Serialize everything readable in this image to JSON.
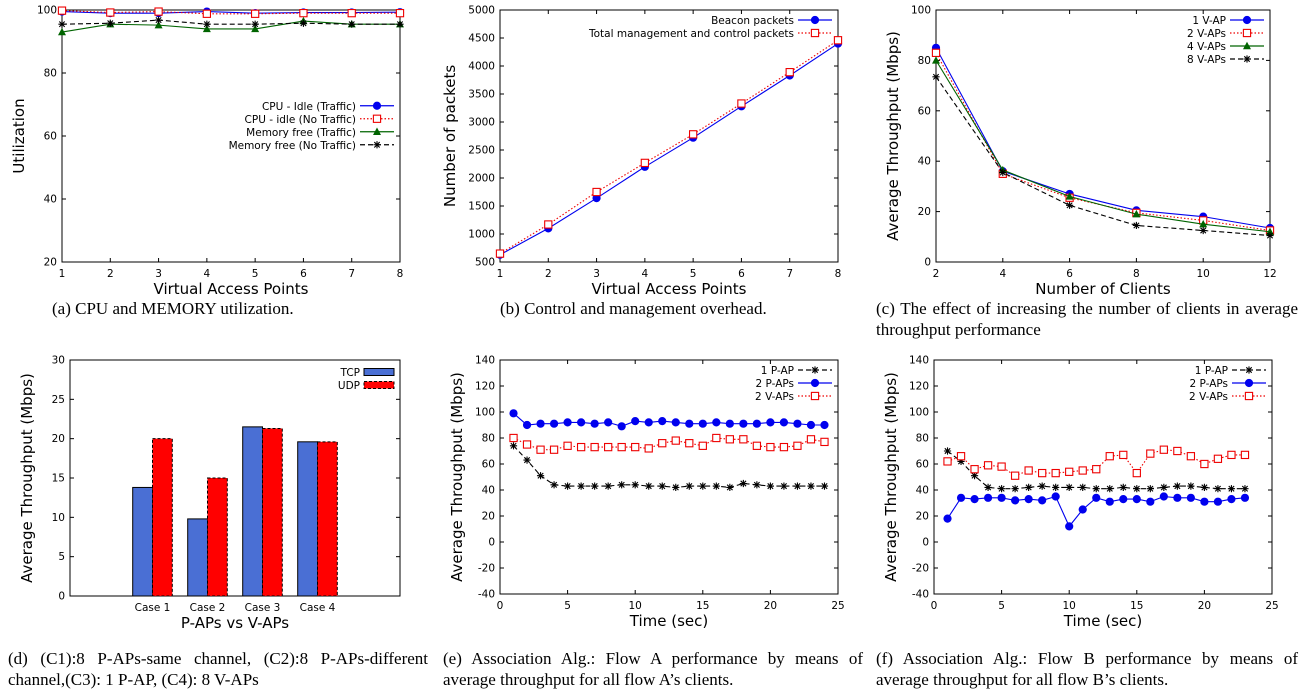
{
  "figures": [
    {
      "id": "a",
      "caption": "(a) CPU and MEMORY utilization.",
      "chart_data": {
        "type": "line",
        "xlabel": "Virtual Access Points",
        "ylabel": "Utilization",
        "xlim": [
          1,
          8
        ],
        "ylim": [
          20,
          100
        ],
        "xticks": [
          1,
          2,
          3,
          4,
          5,
          6,
          7,
          8
        ],
        "yticks": [
          20,
          40,
          60,
          80,
          100
        ],
        "grid": false,
        "legend_position": "center-right",
        "series": [
          {
            "name": "CPU - Idle (Traffic)",
            "color": "#0000ee",
            "marker": "circle-filled",
            "dash": "solid",
            "x": [
              1,
              2,
              3,
              4,
              5,
              6,
              7,
              8
            ],
            "values": [
              99.5,
              99,
              99,
              99.5,
              99,
              99.2,
              99.2,
              99.3
            ]
          },
          {
            "name": "CPU - idle (No Traffic)",
            "color": "#ee0000",
            "marker": "square-open",
            "dash": "dotted",
            "x": [
              1,
              2,
              3,
              4,
              5,
              6,
              7,
              8
            ],
            "values": [
              99.8,
              99.2,
              99.5,
              98.8,
              98.8,
              99,
              99,
              99
            ]
          },
          {
            "name": "Memory free (Traffic)",
            "color": "#006400",
            "marker": "triangle-filled",
            "dash": "solid",
            "x": [
              1,
              2,
              3,
              4,
              5,
              6,
              7,
              8
            ],
            "values": [
              93,
              95.5,
              95.2,
              94,
              94,
              96.5,
              95.5,
              95.5
            ]
          },
          {
            "name": "Memory free (No Traffic)",
            "color": "#000000",
            "marker": "star",
            "dash": "dashed",
            "x": [
              1,
              2,
              3,
              4,
              5,
              6,
              7,
              8
            ],
            "values": [
              95.5,
              95.8,
              96.8,
              95.5,
              95.5,
              95.8,
              95.5,
              95.5
            ]
          }
        ]
      }
    },
    {
      "id": "b",
      "caption": "(b) Control and management overhead.",
      "chart_data": {
        "type": "line",
        "xlabel": "Virtual Access Points",
        "ylabel": "Number of packets",
        "xlim": [
          1,
          8
        ],
        "ylim": [
          500,
          5000
        ],
        "xticks": [
          1,
          2,
          3,
          4,
          5,
          6,
          7,
          8
        ],
        "yticks": [
          500,
          1000,
          1500,
          2000,
          2500,
          3000,
          3500,
          4000,
          4500,
          5000
        ],
        "grid": false,
        "legend_position": "top-right",
        "series": [
          {
            "name": "Beacon packets",
            "color": "#0000ee",
            "marker": "circle-filled",
            "dash": "solid",
            "x": [
              1,
              2,
              3,
              4,
              5,
              6,
              7,
              8
            ],
            "values": [
              630,
              1100,
              1640,
              2200,
              2720,
              3280,
              3830,
              4400
            ]
          },
          {
            "name": "Total management and control packets",
            "color": "#ee0000",
            "marker": "square-open",
            "dash": "dotted",
            "x": [
              1,
              2,
              3,
              4,
              5,
              6,
              7,
              8
            ],
            "values": [
              650,
              1170,
              1750,
              2270,
              2780,
              3330,
              3890,
              4460
            ]
          }
        ]
      }
    },
    {
      "id": "c",
      "caption": "(c) The effect of increasing the number of clients in average throughput performance",
      "chart_data": {
        "type": "line",
        "xlabel": "Number of Clients",
        "ylabel": "Average Throughput (Mbps)",
        "xlim": [
          2,
          12
        ],
        "ylim": [
          0,
          100
        ],
        "xticks": [
          2,
          4,
          6,
          8,
          10,
          12
        ],
        "yticks": [
          0,
          20,
          40,
          60,
          80,
          100
        ],
        "grid": false,
        "legend_position": "top-right",
        "series": [
          {
            "name": "1 V-AP",
            "color": "#0000ee",
            "marker": "circle-filled",
            "dash": "solid",
            "x": [
              2,
              4,
              6,
              8,
              10,
              12
            ],
            "values": [
              85,
              36,
              27,
              20.5,
              18,
              13.5
            ]
          },
          {
            "name": "2 V-APs",
            "color": "#ee0000",
            "marker": "square-open",
            "dash": "dotted",
            "x": [
              2,
              4,
              6,
              8,
              10,
              12
            ],
            "values": [
              83,
              35,
              25.5,
              19.5,
              16.5,
              12.5
            ]
          },
          {
            "name": "4 V-APs",
            "color": "#006400",
            "marker": "triangle-filled",
            "dash": "solid",
            "x": [
              2,
              4,
              6,
              8,
              10,
              12
            ],
            "values": [
              80,
              36.5,
              26,
              19,
              15,
              12
            ]
          },
          {
            "name": "8 V-APs",
            "color": "#000000",
            "marker": "star",
            "dash": "dashed",
            "x": [
              2,
              4,
              6,
              8,
              10,
              12
            ],
            "values": [
              73.5,
              35.5,
              22.5,
              14.5,
              12.5,
              10.5
            ]
          }
        ]
      }
    },
    {
      "id": "d",
      "caption": "(d) (C1):8 P-APs-same channel, (C2):8 P-APs-different channel,(C3): 1 P-AP, (C4): 8 V-APs",
      "chart_data": {
        "type": "bar",
        "xlabel": "P-APs vs V-APs",
        "ylabel": "Average Throughput (Mbps)",
        "categories": [
          "Case 1",
          "Case 2",
          "Case 3",
          "Case 4"
        ],
        "ylim": [
          0,
          30
        ],
        "yticks": [
          0,
          5,
          10,
          15,
          20,
          25,
          30
        ],
        "grid": false,
        "legend_position": "top-right",
        "series": [
          {
            "name": "TCP",
            "color": "#4a6fd4",
            "values": [
              13.8,
              9.8,
              21.5,
              19.6
            ]
          },
          {
            "name": "UDP",
            "color": "#ff0000",
            "values": [
              20.0,
              15.0,
              21.3,
              19.6
            ]
          }
        ]
      }
    },
    {
      "id": "e",
      "caption": "(e) Association Alg.: Flow A performance by means of average throughput for all flow A’s clients.",
      "chart_data": {
        "type": "line",
        "xlabel": "Time (sec)",
        "ylabel": "Average Throughput (Mbps)",
        "xlim": [
          0,
          25
        ],
        "ylim": [
          -40,
          140
        ],
        "xticks": [
          0,
          5,
          10,
          15,
          20,
          25
        ],
        "yticks": [
          -40,
          -20,
          0,
          20,
          40,
          60,
          80,
          100,
          120,
          140
        ],
        "grid": false,
        "legend_position": "top-right",
        "series": [
          {
            "name": "1 P-AP",
            "color": "#000000",
            "marker": "star",
            "dash": "dashed",
            "x": [
              1,
              2,
              3,
              4,
              5,
              6,
              7,
              8,
              9,
              10,
              11,
              12,
              13,
              14,
              15,
              16,
              17,
              18,
              19,
              20,
              21,
              22,
              23,
              24
            ],
            "values": [
              74,
              63,
              51,
              44,
              43,
              43,
              43,
              43,
              44,
              44,
              43,
              43,
              42,
              43,
              43,
              43,
              42,
              45,
              44,
              43,
              43,
              43,
              43,
              43
            ]
          },
          {
            "name": "2 P-APs",
            "color": "#0000ee",
            "marker": "circle-filled",
            "dash": "solid",
            "x": [
              1,
              2,
              3,
              4,
              5,
              6,
              7,
              8,
              9,
              10,
              11,
              12,
              13,
              14,
              15,
              16,
              17,
              18,
              19,
              20,
              21,
              22,
              23,
              24
            ],
            "values": [
              99,
              90,
              91,
              91,
              92,
              92,
              91,
              92,
              89,
              93,
              92,
              93,
              92,
              91,
              91,
              92,
              91,
              91,
              91,
              92,
              92,
              91,
              90,
              90
            ]
          },
          {
            "name": "2 V-APs",
            "color": "#ee0000",
            "marker": "square-open",
            "dash": "dotted",
            "x": [
              1,
              2,
              3,
              4,
              5,
              6,
              7,
              8,
              9,
              10,
              11,
              12,
              13,
              14,
              15,
              16,
              17,
              18,
              19,
              20,
              21,
              22,
              23,
              24
            ],
            "values": [
              80,
              75,
              71,
              71,
              74,
              73,
              73,
              73,
              73,
              73,
              72,
              76,
              78,
              76,
              74,
              80,
              79,
              79,
              74,
              73,
              73,
              74,
              79,
              77
            ]
          }
        ]
      }
    },
    {
      "id": "f",
      "caption": "(f) Association Alg.: Flow B performance by means of average throughput for all flow B’s clients.",
      "chart_data": {
        "type": "line",
        "xlabel": "Time (sec)",
        "ylabel": "Average Throughput (Mbps)",
        "xlim": [
          0,
          25
        ],
        "ylim": [
          -40,
          140
        ],
        "xticks": [
          0,
          5,
          10,
          15,
          20,
          25
        ],
        "yticks": [
          -40,
          -20,
          0,
          20,
          40,
          60,
          80,
          100,
          120,
          140
        ],
        "grid": false,
        "legend_position": "top-right",
        "series": [
          {
            "name": "1 P-AP",
            "color": "#000000",
            "marker": "star",
            "dash": "dashed",
            "x": [
              1,
              2,
              3,
              4,
              5,
              6,
              7,
              8,
              9,
              10,
              11,
              12,
              13,
              14,
              15,
              16,
              17,
              18,
              19,
              20,
              21,
              22,
              23
            ],
            "values": [
              70,
              62,
              51,
              42,
              41,
              41,
              42,
              43,
              42,
              42,
              42,
              41,
              41,
              42,
              41,
              41,
              42,
              43,
              43,
              42,
              41,
              41,
              41
            ]
          },
          {
            "name": "2 P-APs",
            "color": "#0000ee",
            "marker": "circle-filled",
            "dash": "solid",
            "x": [
              1,
              2,
              3,
              4,
              5,
              6,
              7,
              8,
              9,
              10,
              11,
              12,
              13,
              14,
              15,
              16,
              17,
              18,
              19,
              20,
              21,
              22,
              23
            ],
            "values": [
              18,
              34,
              33,
              34,
              34,
              32,
              33,
              32,
              35,
              12,
              25,
              34,
              31,
              33,
              33,
              31,
              35,
              34,
              34,
              31,
              31,
              33,
              34
            ]
          },
          {
            "name": "2 V-APs",
            "color": "#ee0000",
            "marker": "square-open",
            "dash": "dotted",
            "x": [
              1,
              2,
              3,
              4,
              5,
              6,
              7,
              8,
              9,
              10,
              11,
              12,
              13,
              14,
              15,
              16,
              17,
              18,
              19,
              20,
              21,
              22,
              23
            ],
            "values": [
              62,
              66,
              56,
              59,
              58,
              51,
              55,
              53,
              53,
              54,
              55,
              56,
              66,
              67,
              53,
              68,
              71,
              70,
              66,
              60,
              64,
              67,
              67
            ]
          }
        ]
      }
    }
  ]
}
